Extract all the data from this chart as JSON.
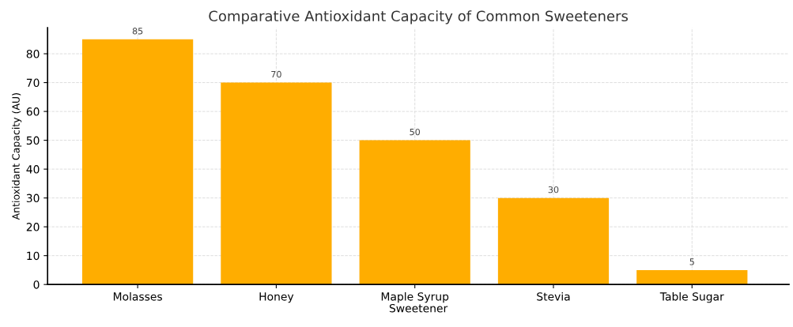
{
  "chart_data": {
    "type": "bar",
    "title": "Comparative Antioxidant Capacity of Common Sweeteners",
    "xlabel": "Sweetener",
    "ylabel": "Antioxidant Capacity (AU)",
    "categories": [
      "Molasses",
      "Honey",
      "Maple Syrup",
      "Stevia",
      "Table Sugar"
    ],
    "values": [
      85,
      70,
      50,
      30,
      5
    ],
    "color": "#ffad00",
    "ylim": [
      0,
      89
    ],
    "yticks": [
      0,
      10,
      20,
      30,
      40,
      50,
      60,
      70,
      80
    ],
    "grid": true,
    "data_labels": true
  }
}
